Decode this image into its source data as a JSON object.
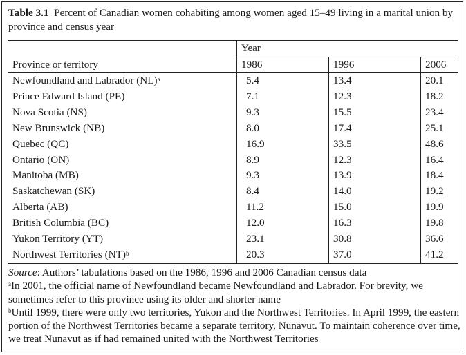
{
  "caption": {
    "label": "Table 3.1",
    "text": "Percent of Canadian women cohabiting among women aged 15–49 living in a marital union by province and census year"
  },
  "table": {
    "spanner": "Year",
    "row_header": "Province or territory",
    "years": [
      "1986",
      "1996",
      "2006"
    ],
    "rows": [
      {
        "province": "Newfoundland and Labrador (NL)",
        "note": "a",
        "v1986": "5.4",
        "v1996": "13.4",
        "v2006": "20.1"
      },
      {
        "province": "Prince Edward Island (PE)",
        "note": "",
        "v1986": "7.1",
        "v1996": "12.3",
        "v2006": "18.2"
      },
      {
        "province": "Nova Scotia (NS)",
        "note": "",
        "v1986": "9.3",
        "v1996": "15.5",
        "v2006": "23.4"
      },
      {
        "province": "New Brunswick (NB)",
        "note": "",
        "v1986": "8.0",
        "v1996": "17.4",
        "v2006": "25.1"
      },
      {
        "province": "Quebec (QC)",
        "note": "",
        "v1986": "16.9",
        "v1996": "33.5",
        "v2006": "48.6"
      },
      {
        "province": "Ontario (ON)",
        "note": "",
        "v1986": "8.9",
        "v1996": "12.3",
        "v2006": "16.4"
      },
      {
        "province": "Manitoba (MB)",
        "note": "",
        "v1986": "9.3",
        "v1996": "13.9",
        "v2006": "18.4"
      },
      {
        "province": "Saskatchewan (SK)",
        "note": "",
        "v1986": "8.4",
        "v1996": "14.0",
        "v2006": "19.2"
      },
      {
        "province": "Alberta (AB)",
        "note": "",
        "v1986": "11.2",
        "v1996": "15.0",
        "v2006": "19.9"
      },
      {
        "province": "British Columbia (BC)",
        "note": "",
        "v1986": "12.0",
        "v1996": "16.3",
        "v2006": "19.8"
      },
      {
        "province": "Yukon Territory (YT)",
        "note": "",
        "v1986": "23.1",
        "v1996": "30.8",
        "v2006": "36.6"
      },
      {
        "province": "Northwest Territories (NT)",
        "note": "b",
        "v1986": "20.3",
        "v1996": "37.0",
        "v2006": "41.2"
      }
    ]
  },
  "notes": {
    "source_label": "Source",
    "source_text": ": Authors’ tabulations based on the 1986, 1996 and 2006 Canadian census data",
    "note_a_mark": "a",
    "note_a_text": "In 2001, the official name of Newfoundland became Newfoundland and Labrador. For brevity, we sometimes refer to this province using its older and shorter name",
    "note_b_mark": "b",
    "note_b_text": "Until 1999, there were only two territories, Yukon and the Northwest Territories. In April 1999, the eastern portion of the Northwest Territories became a separate territory, Nunavut. To maintain coherence over time, we treat Nunavut as if had remained united with the Northwest Territories"
  }
}
